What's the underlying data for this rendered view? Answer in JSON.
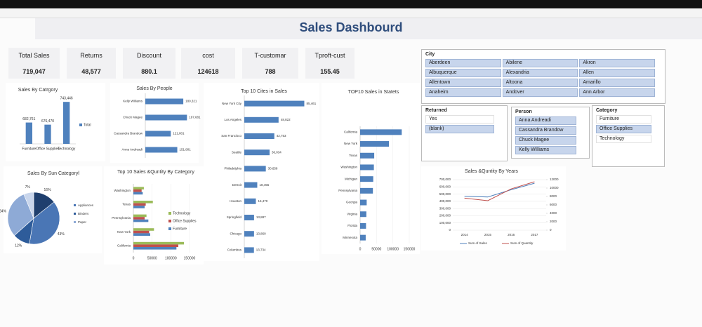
{
  "title": "Sales Dashbourd",
  "kpis": [
    {
      "label": "Total Sales",
      "value": "719,047"
    },
    {
      "label": "Returns",
      "value": "48,577"
    },
    {
      "label": "Discount",
      "value": "880.1"
    },
    {
      "label": "cost",
      "value": "124618"
    },
    {
      "label": "T-customar",
      "value": "788"
    },
    {
      "label": "Tproft-cust",
      "value": "155.45"
    }
  ],
  "chart_data": [
    {
      "type": "bar",
      "title": "Sales By Catrgory",
      "categories": [
        "Furniture",
        "Office Supplies",
        "Technology"
      ],
      "series": [
        {
          "name": "Total",
          "color": "#4f81bd",
          "values": [
            682761,
            676470,
            743446
          ],
          "value_labels": [
            "682,761",
            "676,470",
            "743,446"
          ]
        }
      ],
      "ylim": [
        620000,
        750000
      ]
    },
    {
      "type": "hbar",
      "title": "Sales By People",
      "categories": [
        "Kelly Williams",
        "Chuck Magee",
        "Cassandra Brandow",
        "Anna Andreadi"
      ],
      "values": [
        180321,
        197681,
        121001,
        151801
      ],
      "value_labels": [
        "180,321",
        "197,681",
        "121,001",
        "151,801"
      ],
      "color": "#4f81bd",
      "xlim": [
        0,
        210000
      ]
    },
    {
      "type": "hbar",
      "title": "Top 10 Cites in Sales",
      "categories": [
        "New York City",
        "Los Angeles",
        "San Francisco",
        "Seattle",
        "Philadelphia",
        "Detroit",
        "Houston",
        "Springfield",
        "Chicago",
        "Columbus"
      ],
      "values": [
        85461,
        48822,
        42753,
        36034,
        30658,
        18455,
        16470,
        13887,
        13860,
        13734
      ],
      "value_labels": [
        "85,461",
        "48,822",
        "42,753",
        "36,034",
        "30,658",
        "18,455",
        "16,470",
        "13,887",
        "13,860",
        "13,734"
      ],
      "color": "#4f81bd",
      "xlim": [
        0,
        90000
      ]
    },
    {
      "type": "hbar",
      "title": "TOP10 Sales in Statets",
      "categories": [
        "California",
        "New York",
        "Texas",
        "Washington",
        "Michigan",
        "Pennsylvania",
        "Georgia",
        "Virginia",
        "Florida",
        "Minnesota"
      ],
      "values": [
        127000,
        88000,
        43000,
        42000,
        40000,
        39000,
        20000,
        19000,
        18000,
        17000
      ],
      "color": "#4f81bd",
      "xlim": [
        0,
        150000
      ],
      "xticks": [
        0,
        50000,
        100000,
        150000
      ]
    },
    {
      "type": "pie",
      "title": "Sales By Sun Categoryl",
      "categories": [
        null,
        "Appliances",
        "Binders",
        "Paper",
        null
      ],
      "values": [
        16,
        43,
        12,
        34,
        7
      ],
      "value_labels": [
        "16%",
        "43%",
        "12%",
        "34%",
        "7%"
      ],
      "colors": [
        "#1f3f6e",
        "#4a76b5",
        "#2e5c9a",
        "#8eaad6",
        "#c9d6ec"
      ]
    },
    {
      "type": "hbar",
      "title": "Top 10 Sales &Quntity By Category",
      "categories": [
        "Washington",
        "Texas",
        "Pennsylvania",
        "New York",
        "California"
      ],
      "series": [
        {
          "name": "Technology",
          "color": "#9bbb59",
          "values": [
            28000,
            52000,
            35000,
            55000,
            135000
          ]
        },
        {
          "name": "Office Supplies",
          "color": "#c0504d",
          "values": [
            22000,
            33000,
            30000,
            42000,
            120000
          ]
        },
        {
          "name": "Furniture",
          "color": "#4f81bd",
          "values": [
            25000,
            30000,
            40000,
            45000,
            115000
          ]
        }
      ],
      "xlim": [
        0,
        150000
      ],
      "xticks": [
        0,
        50000,
        100000,
        150000
      ]
    },
    {
      "type": "line",
      "title": "Sales &Quntity By Years",
      "categories": [
        "2014",
        "2015",
        "2016",
        "2017"
      ],
      "series": [
        {
          "name": "Sum of Sales",
          "color": "#4f81bd",
          "values": [
            470000,
            460000,
            560000,
            650000
          ]
        },
        {
          "name": "Sum of Quantity",
          "color": "#c0504d",
          "axis": "y2",
          "values": [
            7600,
            7000,
            9800,
            11500
          ]
        }
      ],
      "ylim": [
        0,
        700000
      ],
      "yticks": [
        0,
        {
          "value": 100000,
          "label": "100,000"
        },
        {
          "value": 200000,
          "label": "200,000"
        },
        {
          "value": 300000,
          "label": "300,000"
        },
        {
          "value": 400000,
          "label": "400,000"
        },
        {
          "value": 500000,
          "label": "500,000"
        },
        {
          "value": 600000,
          "label": "600,000"
        },
        {
          "value": 700000,
          "label": "700,000"
        }
      ],
      "y2lim": [
        0,
        12000
      ],
      "y2ticks": [
        0,
        2000,
        4000,
        6000,
        8000,
        10000,
        12000
      ]
    }
  ],
  "slicers": [
    {
      "title": "City",
      "items": [
        "Aberdeen",
        "Abilene",
        "Akron",
        "Albuquerque",
        "Alexandria",
        "Allen",
        "Allentown",
        "Altoona",
        "Amarillo",
        "Anaheim",
        "Andover",
        "Ann Arbor"
      ]
    },
    {
      "title": "Returned",
      "items": [
        "Yes",
        "(blank)"
      ]
    },
    {
      "title": "Person",
      "items": [
        "Anna Andreadi",
        "Cassandra Brandow",
        "Chuck Magee",
        "Kelly Williams"
      ]
    },
    {
      "title": "Category",
      "items": [
        "Furniture",
        "Office Supplies",
        "Technology"
      ]
    }
  ]
}
